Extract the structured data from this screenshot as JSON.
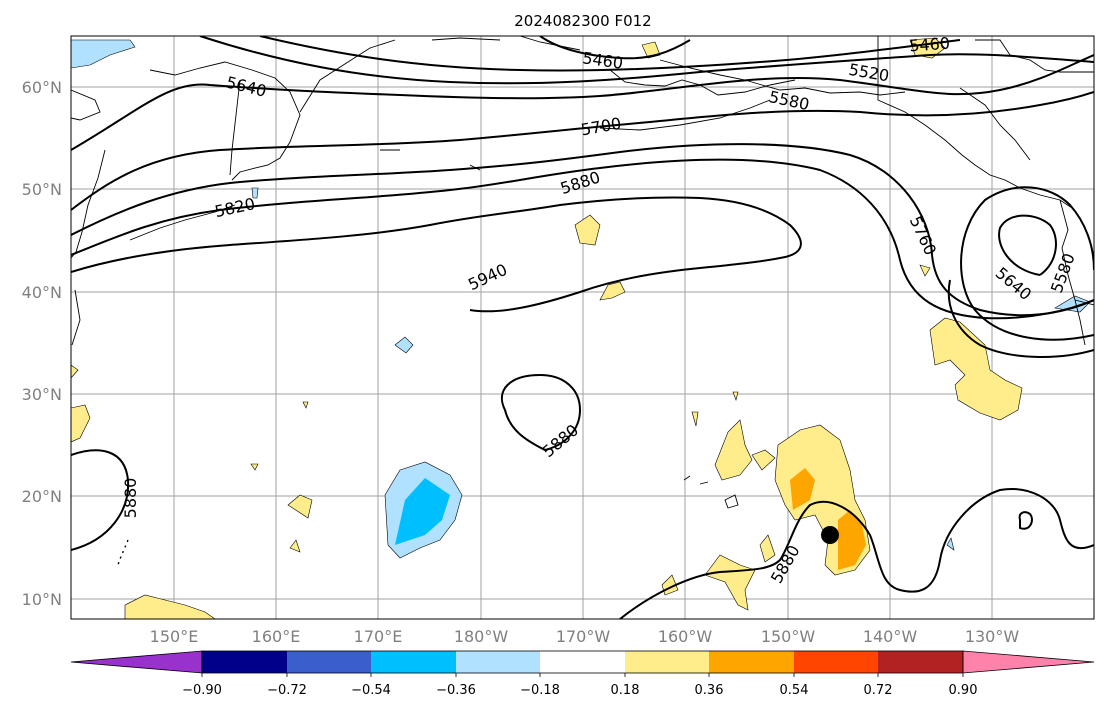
{
  "title": "2024082300 F012",
  "lat_labels": [
    "60°N",
    "50°N",
    "40°N",
    "30°N",
    "20°N",
    "10°N"
  ],
  "lon_labels": [
    "150°E",
    "160°E",
    "170°E",
    "180°W",
    "170°W",
    "160°W",
    "150°W",
    "140°W",
    "130°W"
  ],
  "colorbar": {
    "ticks": [
      "−0.90",
      "−0.72",
      "−0.54",
      "−0.36",
      "−0.18",
      "0.18",
      "0.36",
      "0.54",
      "0.72",
      "0.90"
    ],
    "colors": [
      "#9932CC",
      "#00008B",
      "#3A5FCD",
      "#00BFFF",
      "#B0E2FF",
      "#FFFFFF",
      "#FFEC8B",
      "#FFA500",
      "#FF4500",
      "#B22222",
      "#FF82AB"
    ]
  },
  "contour_labels": [
    {
      "text": "5460",
      "value": 5460
    },
    {
      "text": "5460",
      "value": 5460
    },
    {
      "text": "5520",
      "value": 5520
    },
    {
      "text": "5580",
      "value": 5580
    },
    {
      "text": "5640",
      "value": 5640
    },
    {
      "text": "5700",
      "value": 5700
    },
    {
      "text": "5820",
      "value": 5820
    },
    {
      "text": "5880",
      "value": 5880
    },
    {
      "text": "5940",
      "value": 5940
    },
    {
      "text": "5760",
      "value": 5760
    },
    {
      "text": "5640",
      "value": 5640
    },
    {
      "text": "5580",
      "value": 5580
    },
    {
      "text": "5880",
      "value": 5880
    },
    {
      "text": "5880",
      "value": 5880
    },
    {
      "text": "5880",
      "value": 5880
    }
  ],
  "storm_marker": {
    "lat": 16.2,
    "lon": -145.6
  }
}
